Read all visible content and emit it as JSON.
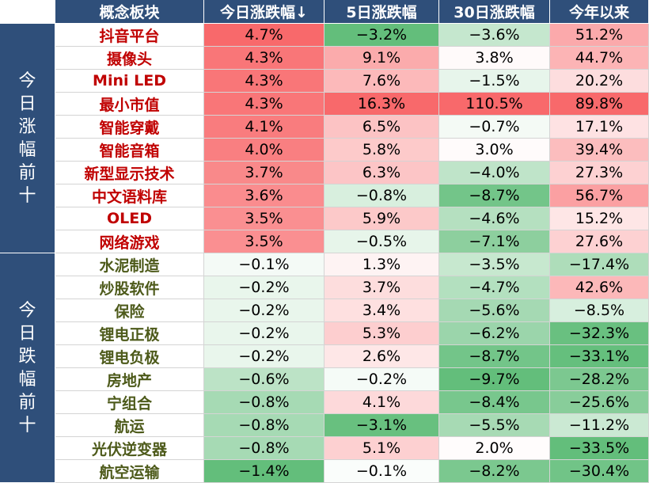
{
  "headers": [
    "概念板块",
    "今日涨跌幅↓",
    "5日涨跌幅",
    "30日涨跌幅",
    "今年以来"
  ],
  "groups": [
    {
      "label": "今日涨幅前十",
      "rows": [
        {
          "name": "抖音平台",
          "today": 4.7,
          "d5": -3.2,
          "d30": -3.6,
          "ytd": 51.2
        },
        {
          "name": "摄像头",
          "today": 4.3,
          "d5": 9.1,
          "d30": 3.8,
          "ytd": 44.7
        },
        {
          "name": "Mini LED",
          "today": 4.3,
          "d5": 7.6,
          "d30": -1.5,
          "ytd": 20.2
        },
        {
          "name": "最小市值",
          "today": 4.3,
          "d5": 16.3,
          "d30": 110.5,
          "ytd": 89.8
        },
        {
          "name": "智能穿戴",
          "today": 4.1,
          "d5": 6.5,
          "d30": -0.7,
          "ytd": 17.1
        },
        {
          "name": "智能音箱",
          "today": 4.0,
          "d5": 5.8,
          "d30": 3.0,
          "ytd": 39.4
        },
        {
          "name": "新型显示技术",
          "today": 3.7,
          "d5": 6.3,
          "d30": -4.0,
          "ytd": 27.3
        },
        {
          "name": "中文语料库",
          "today": 3.6,
          "d5": -0.8,
          "d30": -8.7,
          "ytd": 56.7
        },
        {
          "name": "OLED",
          "today": 3.5,
          "d5": 5.9,
          "d30": -4.6,
          "ytd": 15.2
        },
        {
          "name": "网络游戏",
          "today": 3.5,
          "d5": -0.5,
          "d30": -7.1,
          "ytd": 27.6
        }
      ]
    },
    {
      "label": "今日跌幅前十",
      "rows": [
        {
          "name": "水泥制造",
          "today": -0.1,
          "d5": 1.3,
          "d30": -3.5,
          "ytd": -17.4
        },
        {
          "name": "炒股软件",
          "today": -0.2,
          "d5": 3.7,
          "d30": -4.7,
          "ytd": 42.6
        },
        {
          "name": "保险",
          "today": -0.2,
          "d5": 3.4,
          "d30": -5.6,
          "ytd": -8.5
        },
        {
          "name": "锂电正极",
          "today": -0.2,
          "d5": 5.3,
          "d30": -6.2,
          "ytd": -32.3
        },
        {
          "name": "锂电负极",
          "today": -0.2,
          "d5": 2.6,
          "d30": -8.7,
          "ytd": -33.1
        },
        {
          "name": "房地产",
          "today": -0.6,
          "d5": -0.2,
          "d30": -9.7,
          "ytd": -28.2
        },
        {
          "name": "宁组合",
          "today": -0.8,
          "d5": 4.1,
          "d30": -8.4,
          "ytd": -25.6
        },
        {
          "name": "航运",
          "today": -0.8,
          "d5": -3.1,
          "d30": -5.5,
          "ytd": -11.2
        },
        {
          "name": "光伏逆变器",
          "today": -0.8,
          "d5": 5.1,
          "d30": 2.0,
          "ytd": -33.5
        },
        {
          "name": "航空运输",
          "today": -1.4,
          "d5": -0.1,
          "d30": -8.2,
          "ytd": -30.4
        }
      ]
    }
  ],
  "colors": {
    "header_bg": "#2f4f7a",
    "header_text": "#ffffff",
    "up_name": "#c00000",
    "down_name": "#4d5a1a",
    "positive_strong": "#f8696b",
    "negative_strong": "#63be7b",
    "neutral": "#ffffff"
  }
}
